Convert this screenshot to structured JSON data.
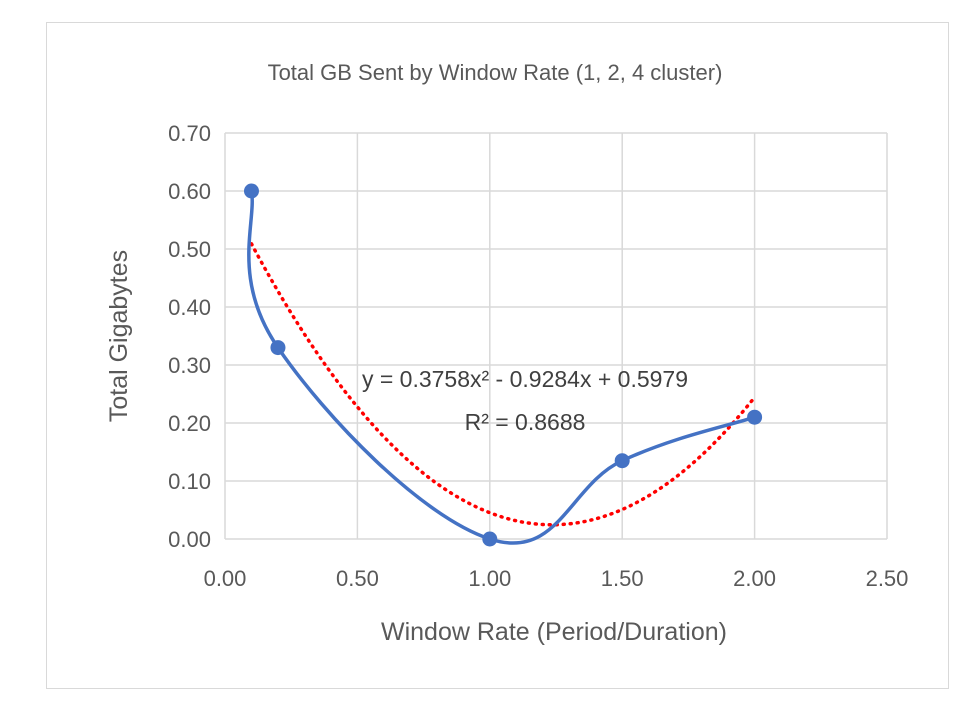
{
  "chart_data": {
    "type": "scatter",
    "title": "Total GB Sent by Window Rate (1, 2, 4 cluster)",
    "xlabel": "Window Rate (Period/Duration)",
    "ylabel": "Total Gigabytes",
    "xlim": [
      0,
      2.5
    ],
    "ylim": [
      0,
      0.7
    ],
    "xticks": [
      "0.00",
      "0.50",
      "1.00",
      "1.50",
      "2.00",
      "2.50"
    ],
    "yticks": [
      "0.00",
      "0.10",
      "0.20",
      "0.30",
      "0.40",
      "0.50",
      "0.60",
      "0.70"
    ],
    "grid": true,
    "legend": false,
    "series": [
      {
        "style": "smoothed line with markers",
        "color": "#4472c4",
        "x": [
          0.1,
          0.2,
          1.0,
          1.5,
          2.0
        ],
        "y": [
          0.6,
          0.33,
          0.0,
          0.135,
          0.21
        ]
      }
    ],
    "trendline": {
      "type": "polynomial (order 2)",
      "color": "#ff0000",
      "coefficients": [
        0.3758,
        -0.9284,
        0.5979
      ],
      "x_range": [
        0.1,
        2.0
      ],
      "equation": "y = 0.3758x² - 0.9284x + 0.5979",
      "r_squared": "R² = 0.8688"
    }
  }
}
